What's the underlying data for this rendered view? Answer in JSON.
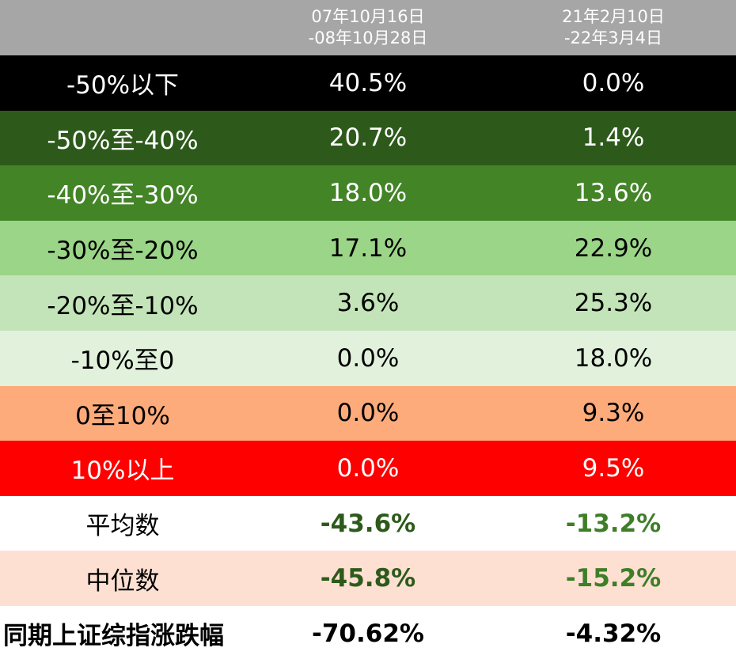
{
  "header": {
    "period1_line1": "07年10月16日",
    "period1_line2": "-08年10月28日",
    "period2_line1": "21年2月10日",
    "period2_line2": "-22年3月4日",
    "bg_color": "#a6a6a6"
  },
  "rows": [
    {
      "label": "-50%以下",
      "p1": "40.5%",
      "p2": "0.0%",
      "bg": "#000000",
      "fg": "#ffffff"
    },
    {
      "label": "-50%至-40%",
      "p1": "20.7%",
      "p2": "1.4%",
      "bg": "#2d5a1b",
      "fg": "#ffffff"
    },
    {
      "label": "-40%至-30%",
      "p1": "18.0%",
      "p2": "13.6%",
      "bg": "#438427",
      "fg": "#ffffff"
    },
    {
      "label": "-30%至-20%",
      "p1": "17.1%",
      "p2": "22.9%",
      "bg": "#9bd587",
      "fg": "#000000"
    },
    {
      "label": "-20%至-10%",
      "p1": "3.6%",
      "p2": "25.3%",
      "bg": "#c3e4b8",
      "fg": "#000000"
    },
    {
      "label": "-10%至0",
      "p1": "0.0%",
      "p2": "18.0%",
      "bg": "#e2f1dc",
      "fg": "#000000"
    },
    {
      "label": "0至10%",
      "p1": "0.0%",
      "p2": "9.3%",
      "bg": "#fdab7b",
      "fg": "#000000"
    },
    {
      "label": "10%以上",
      "p1": "0.0%",
      "p2": "9.5%",
      "bg": "#ff0000",
      "fg": "#ffffff"
    }
  ],
  "summary": [
    {
      "label": "平均数",
      "p1": "-43.6%",
      "p2": "-13.2%",
      "bg": "#ffffff",
      "p1_color": "#2d5a1b",
      "p2_color": "#3e7e28"
    },
    {
      "label": "中位数",
      "p1": "-45.8%",
      "p2": "-15.2%",
      "bg": "#fde0d2",
      "p1_color": "#2d5a1b",
      "p2_color": "#3e7e28"
    }
  ],
  "index_row": {
    "label": "同期上证综指涨跌幅",
    "p1": "-70.62%",
    "p2": "-4.32%",
    "bg": "#ffffff",
    "color": "#000000"
  }
}
